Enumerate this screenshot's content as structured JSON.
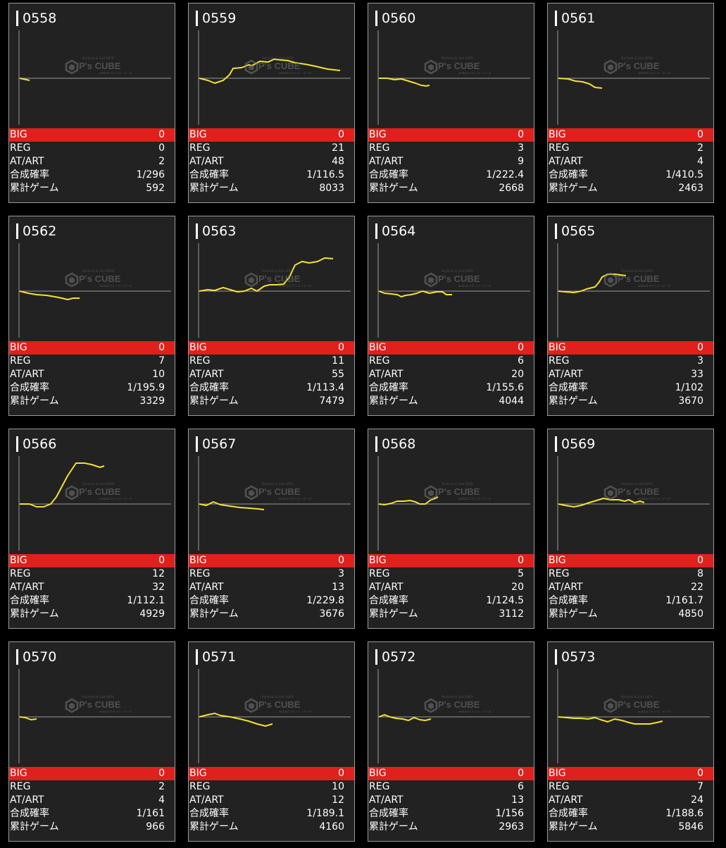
{
  "labels": {
    "big": "BIG",
    "reg": "REG",
    "at": "AT/ART",
    "prob": "合成確率",
    "games": "累計ゲーム"
  },
  "watermark": {
    "brand": "P's CUBE",
    "top_text": "Pachislo & Slot DATA",
    "bottom_text": "webzのパチンコ・データ"
  },
  "colors": {
    "background": "#000000",
    "card": "#222222",
    "big_bar": "#e0201c",
    "graph_line": "#f2e233",
    "axis": "#9a9a9a"
  },
  "cards": [
    {
      "id": "0558",
      "big": "0",
      "reg": "0",
      "at": "2",
      "prob": "1/296",
      "games": "592",
      "graph": [
        [
          0,
          0
        ],
        [
          14,
          -3
        ]
      ]
    },
    {
      "id": "0559",
      "big": "0",
      "reg": "21",
      "at": "48",
      "prob": "1/116.5",
      "games": "8033",
      "graph": [
        [
          0,
          0
        ],
        [
          12,
          -3
        ],
        [
          22,
          -7
        ],
        [
          34,
          -3
        ],
        [
          43,
          5
        ],
        [
          48,
          14
        ],
        [
          60,
          15
        ],
        [
          70,
          19
        ],
        [
          75,
          18
        ],
        [
          86,
          24
        ],
        [
          98,
          23
        ],
        [
          106,
          27
        ],
        [
          115,
          26
        ],
        [
          126,
          25
        ],
        [
          136,
          22
        ],
        [
          150,
          20
        ],
        [
          165,
          17
        ],
        [
          182,
          13
        ],
        [
          200,
          11
        ]
      ]
    },
    {
      "id": "0560",
      "big": "0",
      "reg": "3",
      "at": "9",
      "prob": "1/222.4",
      "games": "2668",
      "graph": [
        [
          0,
          0
        ],
        [
          12,
          0
        ],
        [
          22,
          -2
        ],
        [
          32,
          -1
        ],
        [
          42,
          -4
        ],
        [
          52,
          -7
        ],
        [
          60,
          -10
        ],
        [
          67,
          -11
        ],
        [
          72,
          -10
        ]
      ]
    },
    {
      "id": "0561",
      "big": "0",
      "reg": "2",
      "at": "4",
      "prob": "1/410.5",
      "games": "2463",
      "graph": [
        [
          0,
          0
        ],
        [
          14,
          -1
        ],
        [
          24,
          -4
        ],
        [
          34,
          -5
        ],
        [
          44,
          -8
        ],
        [
          52,
          -13
        ],
        [
          62,
          -14
        ]
      ]
    },
    {
      "id": "0562",
      "big": "0",
      "reg": "7",
      "at": "10",
      "prob": "1/195.9",
      "games": "3329",
      "graph": [
        [
          0,
          0
        ],
        [
          12,
          -3
        ],
        [
          24,
          -5
        ],
        [
          38,
          -6
        ],
        [
          50,
          -8
        ],
        [
          60,
          -10
        ],
        [
          68,
          -12
        ],
        [
          76,
          -10
        ],
        [
          85,
          -10
        ]
      ]
    },
    {
      "id": "0563",
      "big": "0",
      "reg": "11",
      "at": "55",
      "prob": "1/113.4",
      "games": "7479",
      "graph": [
        [
          0,
          0
        ],
        [
          12,
          2
        ],
        [
          22,
          1
        ],
        [
          34,
          5
        ],
        [
          44,
          2
        ],
        [
          54,
          -1
        ],
        [
          64,
          0
        ],
        [
          74,
          4
        ],
        [
          82,
          0
        ],
        [
          92,
          7
        ],
        [
          100,
          9
        ],
        [
          110,
          9
        ],
        [
          120,
          10
        ],
        [
          128,
          20
        ],
        [
          136,
          37
        ],
        [
          146,
          42
        ],
        [
          156,
          40
        ],
        [
          168,
          42
        ],
        [
          178,
          47
        ],
        [
          190,
          46
        ]
      ]
    },
    {
      "id": "0564",
      "big": "0",
      "reg": "6",
      "at": "20",
      "prob": "1/155.6",
      "games": "4044",
      "graph": [
        [
          0,
          0
        ],
        [
          8,
          -3
        ],
        [
          18,
          -4
        ],
        [
          26,
          -5
        ],
        [
          32,
          -8
        ],
        [
          38,
          -6
        ],
        [
          46,
          -5
        ],
        [
          54,
          -3
        ],
        [
          62,
          0
        ],
        [
          72,
          -3
        ],
        [
          82,
          -1
        ],
        [
          90,
          -1
        ],
        [
          96,
          -5
        ],
        [
          104,
          -5
        ]
      ]
    },
    {
      "id": "0565",
      "big": "0",
      "reg": "3",
      "at": "33",
      "prob": "1/102",
      "games": "3670",
      "graph": [
        [
          0,
          0
        ],
        [
          10,
          -1
        ],
        [
          22,
          -2
        ],
        [
          32,
          0
        ],
        [
          40,
          3
        ],
        [
          52,
          6
        ],
        [
          58,
          13
        ],
        [
          62,
          20
        ],
        [
          70,
          24
        ],
        [
          80,
          24
        ],
        [
          88,
          23
        ],
        [
          96,
          22
        ]
      ]
    },
    {
      "id": "0566",
      "big": "0",
      "reg": "12",
      "at": "32",
      "prob": "1/112.1",
      "games": "4929",
      "graph": [
        [
          0,
          0
        ],
        [
          14,
          0
        ],
        [
          24,
          -4
        ],
        [
          34,
          -4
        ],
        [
          44,
          0
        ],
        [
          52,
          10
        ],
        [
          60,
          25
        ],
        [
          68,
          40
        ],
        [
          80,
          58
        ],
        [
          92,
          58
        ],
        [
          102,
          56
        ],
        [
          114,
          52
        ],
        [
          120,
          54
        ]
      ]
    },
    {
      "id": "0567",
      "big": "0",
      "reg": "3",
      "at": "13",
      "prob": "1/229.8",
      "games": "3676",
      "graph": [
        [
          0,
          0
        ],
        [
          10,
          -2
        ],
        [
          20,
          3
        ],
        [
          30,
          -1
        ],
        [
          44,
          -3
        ],
        [
          58,
          -5
        ],
        [
          72,
          -6
        ],
        [
          84,
          -7
        ],
        [
          92,
          -8
        ]
      ]
    },
    {
      "id": "0568",
      "big": "0",
      "reg": "5",
      "at": "20",
      "prob": "1/124.5",
      "games": "3112",
      "graph": [
        [
          0,
          0
        ],
        [
          8,
          -1
        ],
        [
          18,
          1
        ],
        [
          26,
          4
        ],
        [
          36,
          4
        ],
        [
          44,
          5
        ],
        [
          52,
          3
        ],
        [
          58,
          0
        ],
        [
          66,
          0
        ],
        [
          74,
          6
        ],
        [
          80,
          8
        ],
        [
          84,
          10
        ]
      ]
    },
    {
      "id": "0569",
      "big": "0",
      "reg": "8",
      "at": "22",
      "prob": "1/161.7",
      "games": "4850",
      "graph": [
        [
          0,
          0
        ],
        [
          10,
          -2
        ],
        [
          22,
          -4
        ],
        [
          32,
          -2
        ],
        [
          44,
          2
        ],
        [
          54,
          5
        ],
        [
          64,
          8
        ],
        [
          74,
          6
        ],
        [
          86,
          6
        ],
        [
          94,
          4
        ],
        [
          100,
          6
        ],
        [
          108,
          2
        ],
        [
          116,
          4
        ],
        [
          122,
          2
        ]
      ]
    },
    {
      "id": "0570",
      "big": "0",
      "reg": "2",
      "at": "4",
      "prob": "1/161",
      "games": "966",
      "graph": [
        [
          0,
          0
        ],
        [
          8,
          -1
        ],
        [
          16,
          -4
        ],
        [
          24,
          -3
        ]
      ]
    },
    {
      "id": "0571",
      "big": "0",
      "reg": "10",
      "at": "12",
      "prob": "1/189.1",
      "games": "4160",
      "graph": [
        [
          0,
          0
        ],
        [
          12,
          3
        ],
        [
          22,
          5
        ],
        [
          30,
          2
        ],
        [
          44,
          0
        ],
        [
          58,
          -3
        ],
        [
          70,
          -6
        ],
        [
          82,
          -10
        ],
        [
          94,
          -13
        ],
        [
          104,
          -10
        ]
      ]
    },
    {
      "id": "0572",
      "big": "0",
      "reg": "6",
      "at": "13",
      "prob": "1/156",
      "games": "2963",
      "graph": [
        [
          0,
          0
        ],
        [
          8,
          3
        ],
        [
          16,
          0
        ],
        [
          24,
          -2
        ],
        [
          34,
          -3
        ],
        [
          42,
          -5
        ],
        [
          50,
          -1
        ],
        [
          58,
          -4
        ],
        [
          66,
          -5
        ],
        [
          74,
          -3
        ]
      ]
    },
    {
      "id": "0573",
      "big": "0",
      "reg": "7",
      "at": "24",
      "prob": "1/188.6",
      "games": "5846",
      "graph": [
        [
          0,
          0
        ],
        [
          12,
          -1
        ],
        [
          22,
          -2
        ],
        [
          32,
          -2
        ],
        [
          42,
          -3
        ],
        [
          52,
          -1
        ],
        [
          60,
          -4
        ],
        [
          70,
          -7
        ],
        [
          80,
          -3
        ],
        [
          90,
          -5
        ],
        [
          100,
          -8
        ],
        [
          108,
          -10
        ],
        [
          118,
          -10
        ],
        [
          130,
          -10
        ],
        [
          140,
          -8
        ],
        [
          148,
          -6
        ]
      ]
    }
  ]
}
